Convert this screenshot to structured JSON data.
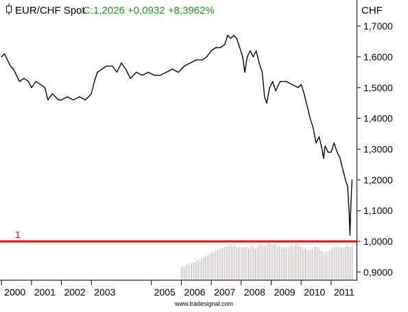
{
  "header": {
    "instrument": "EUR/CHF Spot",
    "quote_text": "C:1,2026 +0,0932 +8,3962%",
    "quote_color": "#1a9a1a"
  },
  "watermark": "www.tradesignal.com",
  "chart_data": {
    "type": "line",
    "title": "EUR/CHF Spot",
    "ylabel": "CHF",
    "ylim": [
      0.875,
      1.785
    ],
    "y_ticks": [
      0.9,
      1.0,
      1.1,
      1.2,
      1.3,
      1.4,
      1.5,
      1.6,
      1.7
    ],
    "y_tick_labels": [
      "0,9000",
      "1,0000",
      "1,1000",
      "1,2000",
      "1,3000",
      "1,4000",
      "1,5000",
      "1,6000",
      "1,7000"
    ],
    "x_range": [
      1999.95,
      2011.85
    ],
    "x_ticks": [
      2000,
      2001,
      2002,
      2003,
      2005,
      2006,
      2007,
      2008,
      2009,
      2010,
      2011
    ],
    "x_tick_labels": [
      "2000",
      "2001",
      "2002",
      "2003",
      "2005",
      "2006",
      "2007",
      "2008",
      "2009",
      "2010",
      "2011"
    ],
    "last_close": 1.2026,
    "series": [
      {
        "name": "EUR/CHF Spot",
        "color": "#000000",
        "x": [
          2000.0,
          2000.1,
          2000.2,
          2000.3,
          2000.4,
          2000.5,
          2000.6,
          2000.75,
          2000.9,
          2001.0,
          2001.15,
          2001.3,
          2001.45,
          2001.55,
          2001.7,
          2001.8,
          2001.9,
          2002.0,
          2002.2,
          2002.4,
          2002.6,
          2002.8,
          2003.0,
          2003.1,
          2003.2,
          2003.35,
          2003.5,
          2003.7,
          2003.85,
          2004.0,
          2004.15,
          2004.3,
          2004.5,
          2004.7,
          2004.9,
          2005.1,
          2005.3,
          2005.5,
          2005.7,
          2005.9,
          2006.1,
          2006.3,
          2006.5,
          2006.7,
          2006.85,
          2007.0,
          2007.15,
          2007.3,
          2007.45,
          2007.55,
          2007.65,
          2007.75,
          2007.85,
          2007.95,
          2008.05,
          2008.12,
          2008.2,
          2008.3,
          2008.4,
          2008.5,
          2008.6,
          2008.7,
          2008.78,
          2008.85,
          2008.95,
          2009.05,
          2009.15,
          2009.3,
          2009.5,
          2009.7,
          2009.9,
          2010.0,
          2010.1,
          2010.2,
          2010.3,
          2010.4,
          2010.5,
          2010.6,
          2010.7,
          2010.75,
          2010.8,
          2010.9,
          2011.0,
          2011.1,
          2011.2,
          2011.3,
          2011.4,
          2011.48,
          2011.55,
          2011.6,
          2011.63,
          2011.66,
          2011.7
        ],
        "values": [
          1.6,
          1.61,
          1.59,
          1.57,
          1.56,
          1.54,
          1.52,
          1.53,
          1.52,
          1.5,
          1.52,
          1.51,
          1.5,
          1.46,
          1.48,
          1.47,
          1.46,
          1.46,
          1.47,
          1.46,
          1.47,
          1.46,
          1.48,
          1.52,
          1.55,
          1.56,
          1.57,
          1.57,
          1.55,
          1.58,
          1.56,
          1.53,
          1.55,
          1.54,
          1.55,
          1.54,
          1.54,
          1.55,
          1.56,
          1.55,
          1.57,
          1.58,
          1.59,
          1.59,
          1.6,
          1.62,
          1.63,
          1.63,
          1.64,
          1.67,
          1.66,
          1.67,
          1.66,
          1.63,
          1.6,
          1.55,
          1.6,
          1.62,
          1.6,
          1.62,
          1.58,
          1.55,
          1.47,
          1.45,
          1.5,
          1.52,
          1.49,
          1.52,
          1.52,
          1.51,
          1.5,
          1.51,
          1.48,
          1.44,
          1.4,
          1.37,
          1.32,
          1.34,
          1.3,
          1.27,
          1.31,
          1.29,
          1.29,
          1.32,
          1.29,
          1.27,
          1.23,
          1.2,
          1.18,
          1.1,
          1.02,
          1.12,
          1.2
        ]
      }
    ],
    "volume": {
      "x_start": 2006.0,
      "x_end": 2011.7,
      "values": [
        0.3,
        0.35,
        0.32,
        0.38,
        0.4,
        0.36,
        0.42,
        0.45,
        0.44,
        0.48,
        0.5,
        0.47,
        0.55,
        0.58,
        0.6,
        0.62,
        0.64,
        0.66,
        0.7,
        0.68,
        0.72,
        0.74,
        0.76,
        0.78,
        0.8,
        0.82,
        0.85,
        0.83,
        0.88,
        0.86,
        0.84,
        0.87,
        0.82,
        0.8,
        0.83,
        0.79,
        0.82,
        0.8,
        0.84,
        0.78,
        0.82,
        0.86,
        0.8,
        0.78,
        0.82,
        0.85,
        0.9,
        0.88,
        0.84,
        0.86,
        0.9,
        0.92,
        0.88,
        0.86,
        0.9,
        0.88,
        0.82,
        0.85,
        0.8,
        0.84,
        0.78,
        0.82,
        0.8,
        0.84,
        0.86,
        0.82,
        0.88,
        0.9,
        0.86,
        0.84,
        0.8,
        0.76,
        0.78,
        0.74,
        0.72,
        0.76,
        0.78,
        0.82,
        0.84,
        0.8,
        0.78,
        0.74,
        0.72,
        0.68,
        0.72,
        0.7,
        0.74,
        0.78,
        0.8,
        0.82,
        0.8,
        0.84,
        0.82,
        0.8,
        0.78,
        0.82,
        0.86,
        0.84,
        0.82,
        0.86
      ]
    },
    "reference_line": {
      "label": "1",
      "value": 1.0,
      "color": "#ff0000"
    }
  }
}
